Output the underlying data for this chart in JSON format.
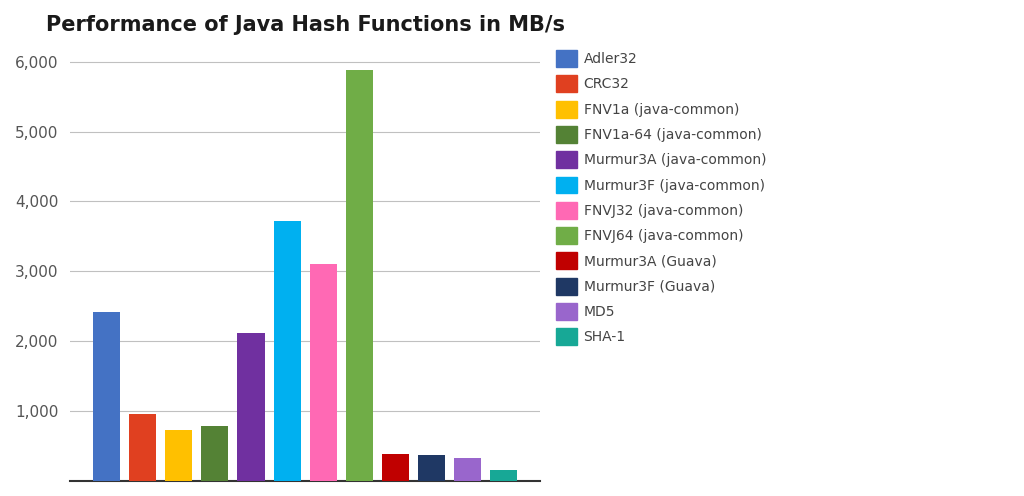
{
  "title": "Performance of Java Hash Functions in MB/s",
  "categories": [
    "Adler32",
    "CRC32",
    "FNV1a (java-common)",
    "FNV1a-64 (java-common)",
    "Murmur3A (java-common)",
    "Murmur3F (java-common)",
    "FNVJ32 (java-common)",
    "FNVJ64 (java-common)",
    "Murmur3A (Guava)",
    "Murmur3F (Guava)",
    "MD5",
    "SHA-1"
  ],
  "values": [
    2420,
    960,
    730,
    790,
    2120,
    3720,
    3110,
    5880,
    380,
    370,
    330,
    160
  ],
  "colors": [
    "#4472C4",
    "#E04020",
    "#FFC000",
    "#548235",
    "#7030A0",
    "#00B0F0",
    "#FF69B4",
    "#70AD47",
    "#C00000",
    "#1F3864",
    "#9966CC",
    "#17A896"
  ],
  "legend_colors": [
    "#4472C4",
    "#E04020",
    "#FFC000",
    "#548235",
    "#7030A0",
    "#00B0F0",
    "#FF69B4",
    "#70AD47",
    "#C00000",
    "#1F3864",
    "#9966CC",
    "#17A896"
  ],
  "ylim": [
    0,
    6200
  ],
  "yticks": [
    1000,
    2000,
    3000,
    4000,
    5000,
    6000
  ],
  "background_color": "#FFFFFF",
  "grid_color": "#C0C0C0",
  "title_fontsize": 15
}
